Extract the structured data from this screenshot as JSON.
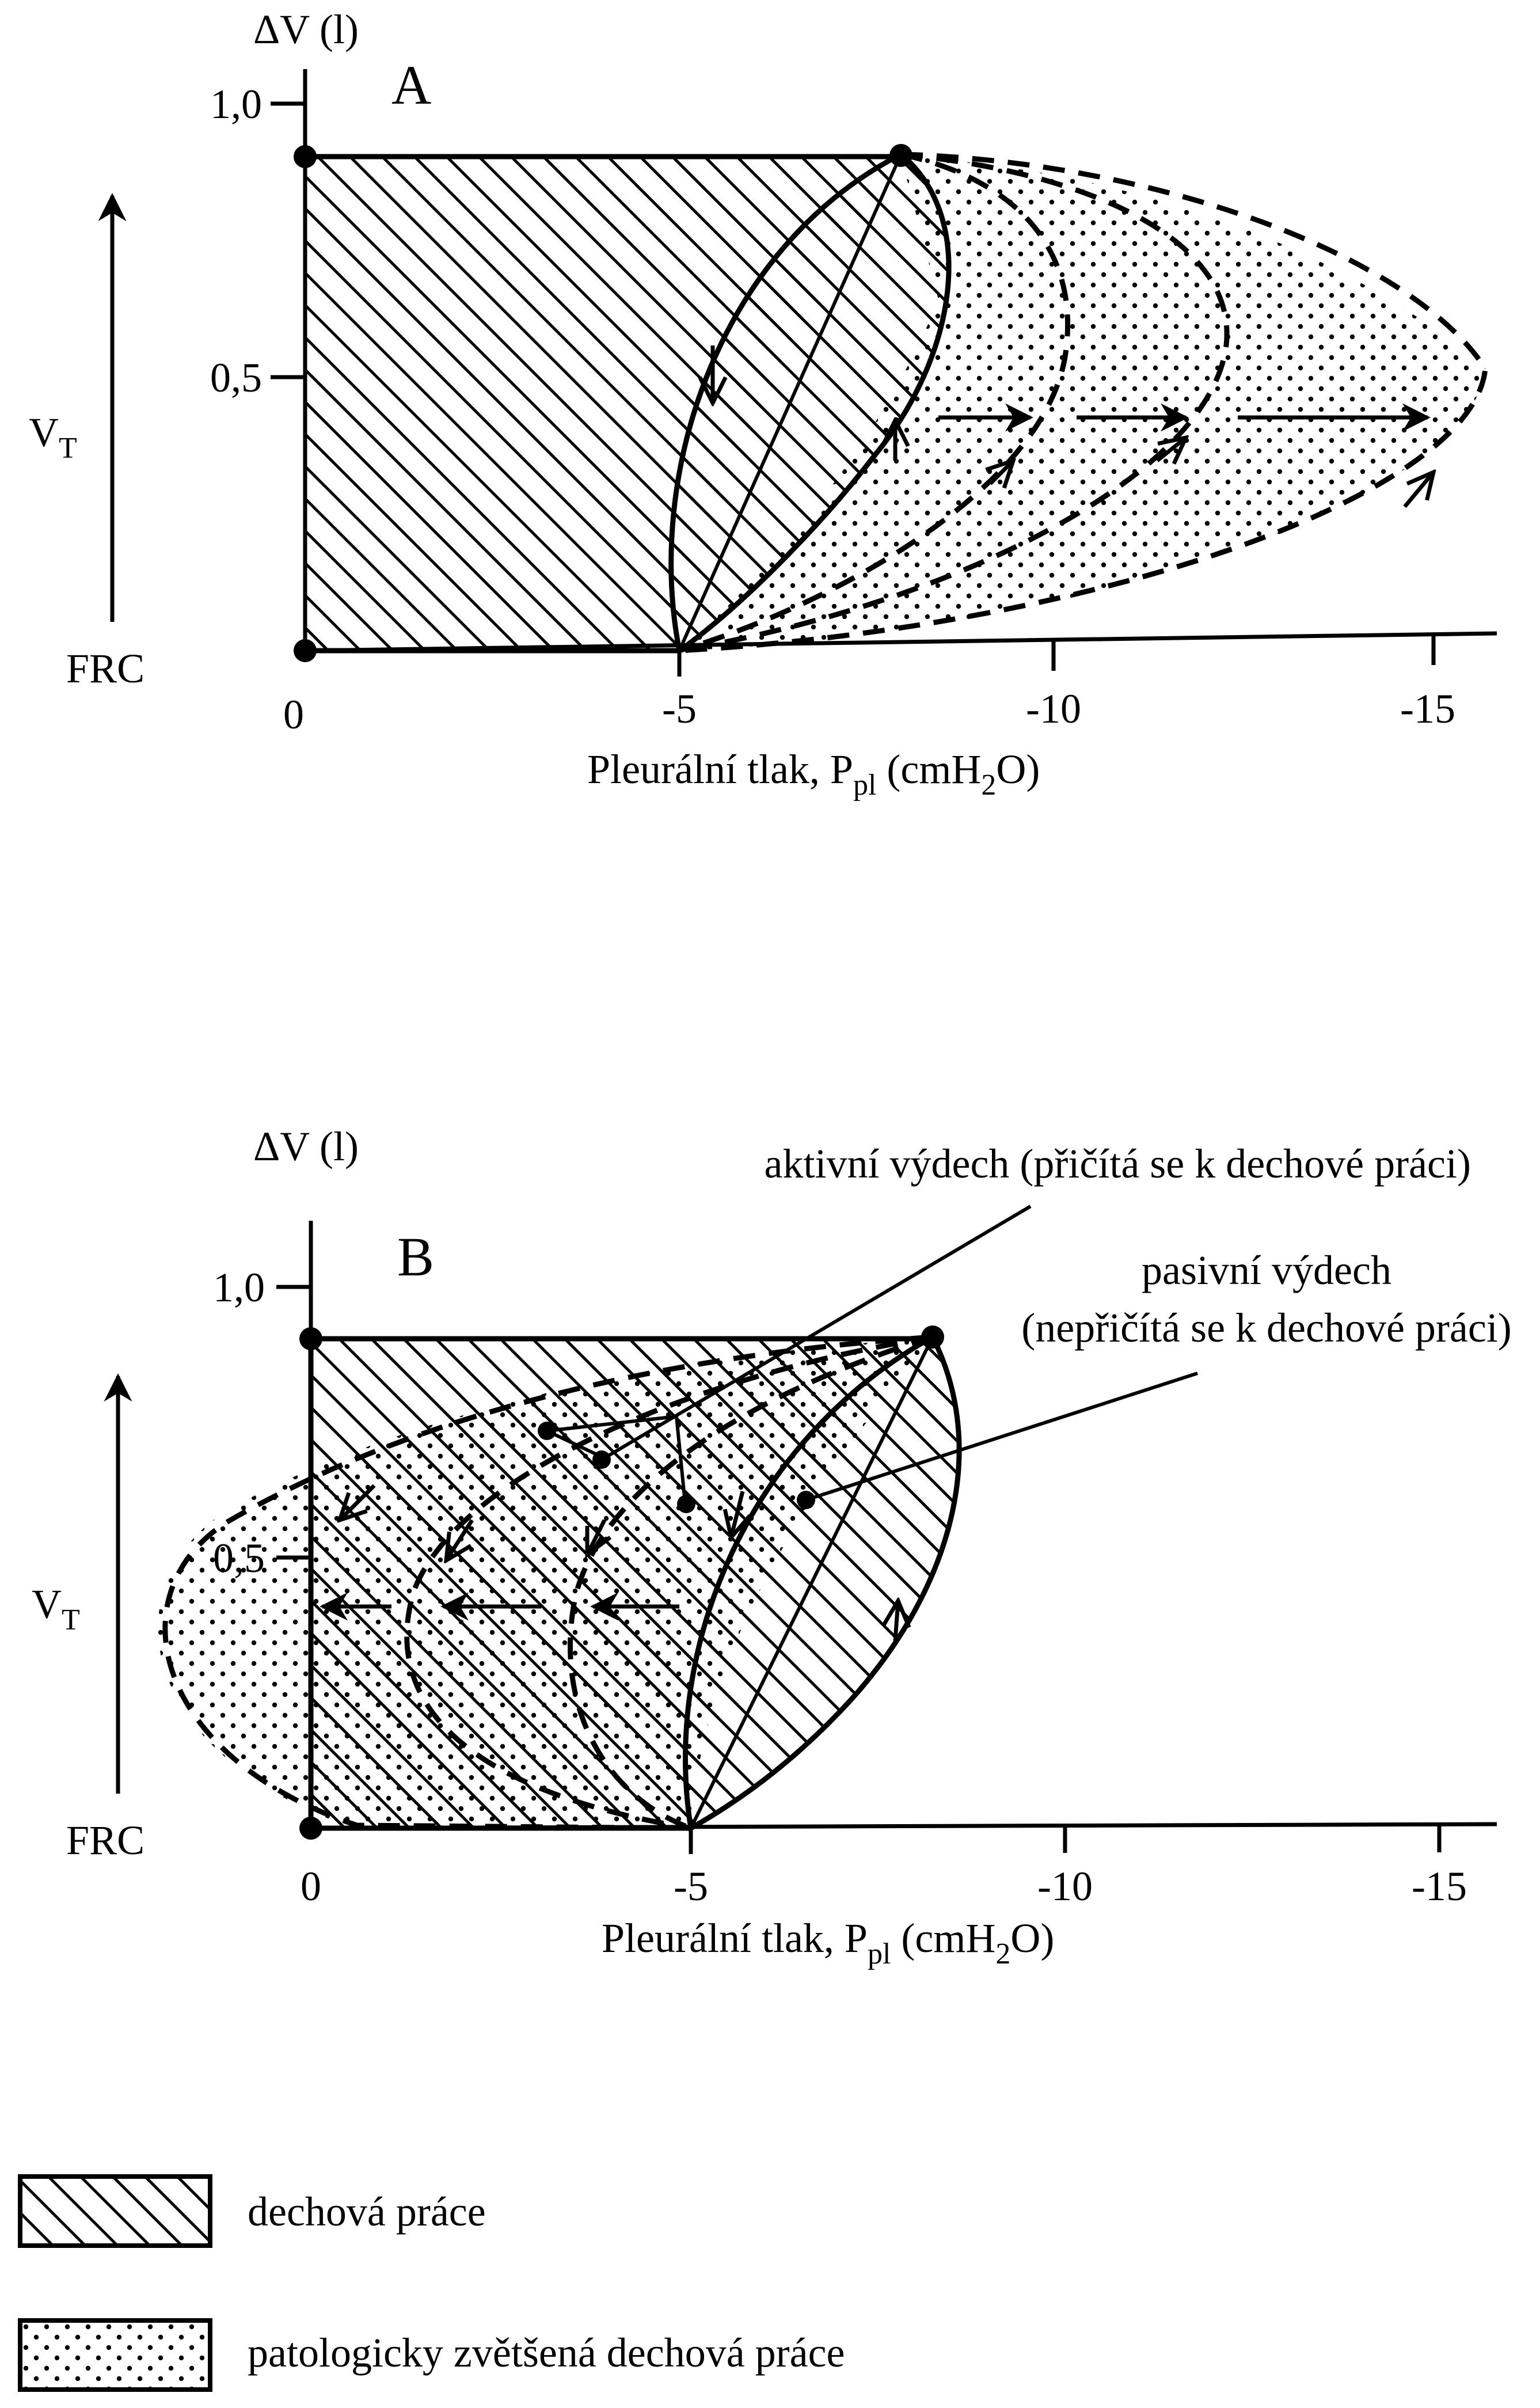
{
  "panel_a": {
    "letter": "A",
    "y_axis_label": "ΔV  (l)",
    "y_ticks": [
      "1,0",
      "0,5"
    ],
    "x_ticks": [
      "0",
      "-5",
      "-10",
      "-15"
    ],
    "x_axis_label": "Pleurální tlak, P",
    "x_axis_sub": "pl",
    "x_axis_unit_pre": " (cmH",
    "x_axis_unit_sub": "2",
    "x_axis_unit_post": "O)",
    "vt_label": "V",
    "vt_sub": "T",
    "frc_label": "FRC"
  },
  "panel_b": {
    "letter": "B",
    "y_axis_label": "ΔV  (l)",
    "y_ticks": [
      "1,0",
      "0,5"
    ],
    "x_ticks": [
      "0",
      "-5",
      "-10",
      "-15"
    ],
    "x_axis_label": "Pleurální tlak, P",
    "x_axis_sub": "pl",
    "x_axis_unit_pre": " (cmH",
    "x_axis_unit_sub": "2",
    "x_axis_unit_post": "O)",
    "vt_label": "V",
    "vt_sub": "T",
    "frc_label": "FRC",
    "annotation_active": "aktivní výdech (přičítá se k dechové práci)",
    "annotation_passive_1": "pasivní výdech",
    "annotation_passive_2": "(nepřičítá se k dechové práci)"
  },
  "legend": {
    "hatch_label": "dechová práce",
    "dots_label": "patologicky zvětšená dechová práce"
  }
}
